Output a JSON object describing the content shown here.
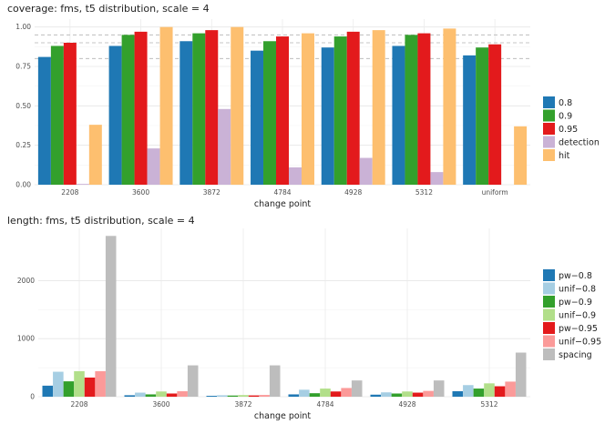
{
  "chart_data": [
    {
      "type": "bar",
      "title": "coverage: fms, t5 distribution, scale = 4",
      "xlabel": "change point",
      "ylabel": "",
      "categories": [
        "2208",
        "3600",
        "3872",
        "4784",
        "4928",
        "5312",
        "uniform"
      ],
      "ylim": [
        0,
        1.05
      ],
      "yticks": [
        "0.00",
        "0.25",
        "0.50",
        "0.75",
        "1.00"
      ],
      "ytick_values": [
        0,
        0.25,
        0.5,
        0.75,
        1.0
      ],
      "reference_lines": [
        0.8,
        0.9,
        0.95
      ],
      "series": [
        {
          "name": "0.8",
          "color": "#1f78b4",
          "values": [
            0.81,
            0.88,
            0.91,
            0.85,
            0.87,
            0.88,
            0.82
          ]
        },
        {
          "name": "0.9",
          "color": "#33a02c",
          "values": [
            0.88,
            0.95,
            0.96,
            0.91,
            0.94,
            0.95,
            0.87
          ]
        },
        {
          "name": "0.95",
          "color": "#e31a1c",
          "values": [
            0.9,
            0.97,
            0.98,
            0.94,
            0.97,
            0.96,
            0.89
          ]
        },
        {
          "name": "detection",
          "color": "#cab2d6",
          "values": [
            0.005,
            0.23,
            0.48,
            0.11,
            0.17,
            0.08,
            null
          ]
        },
        {
          "name": "hit",
          "color": "#fdbf6f",
          "values": [
            0.38,
            1.0,
            1.0,
            0.96,
            0.98,
            0.99,
            0.37
          ]
        }
      ],
      "legend_position": "right"
    },
    {
      "type": "bar",
      "title": "length: fms, t5 distribution, scale = 4",
      "xlabel": "change point",
      "ylabel": "",
      "categories": [
        "2208",
        "3600",
        "3872",
        "4784",
        "4928",
        "5312"
      ],
      "ylim": [
        0,
        2900
      ],
      "yticks": [
        "0",
        "1000",
        "2000"
      ],
      "ytick_values": [
        0,
        1000,
        2000
      ],
      "series": [
        {
          "name": "pw−0.8",
          "color": "#1f78b4",
          "values": [
            190,
            25,
            15,
            40,
            35,
            95
          ]
        },
        {
          "name": "unif−0.8",
          "color": "#a6cee3",
          "values": [
            430,
            70,
            25,
            120,
            75,
            200
          ]
        },
        {
          "name": "pw−0.9",
          "color": "#33a02c",
          "values": [
            265,
            40,
            20,
            60,
            55,
            140
          ]
        },
        {
          "name": "unif−0.9",
          "color": "#b2df8a",
          "values": [
            440,
            90,
            28,
            140,
            90,
            230
          ]
        },
        {
          "name": "pw−0.95",
          "color": "#e31a1c",
          "values": [
            330,
            55,
            22,
            90,
            70,
            180
          ]
        },
        {
          "name": "unif−0.95",
          "color": "#fb9a99",
          "values": [
            440,
            95,
            30,
            150,
            100,
            260
          ]
        },
        {
          "name": "spacing",
          "color": "#bdbdbd",
          "values": [
            2770,
            540,
            540,
            280,
            280,
            760
          ]
        }
      ],
      "legend_position": "right"
    }
  ]
}
